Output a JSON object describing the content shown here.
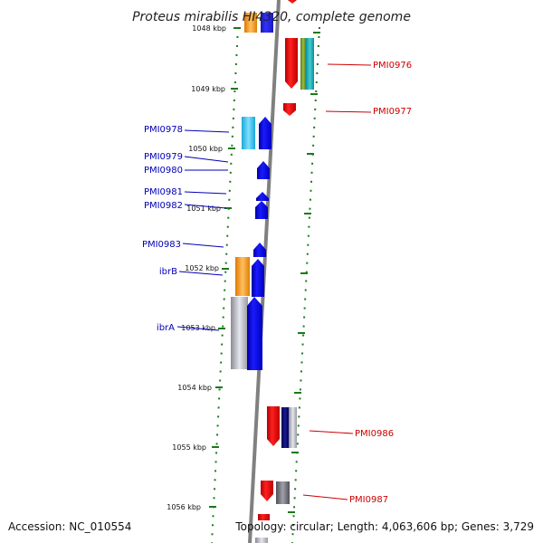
{
  "title": "Proteus mirabilis HI4320, complete genome",
  "footer": {
    "accession": "Accession: NC_010554",
    "topology": "Topology: circular; Length: 4,063,606 bp; Genes: 3,729"
  },
  "ticks": [
    "1048 kbp",
    "1049 kbp",
    "1050 kbp",
    "1051 kbp",
    "1052 kbp",
    "1053 kbp",
    "1054 kbp",
    "1055 kbp",
    "1056 kbp"
  ],
  "genes_left": [
    "PMI0978",
    "PMI0979",
    "PMI0980",
    "PMI0981",
    "PMI0982",
    "PMI0983",
    "ibrB",
    "ibrA"
  ],
  "genes_right": [
    "PMI0976",
    "PMI0977",
    "PMI0986",
    "PMI0987"
  ],
  "colors": {
    "forward": "#0000e6",
    "reverse": "#e60000",
    "label_forward": "#0000b8",
    "label_reverse": "#cc0000",
    "backbone": "#808080",
    "dotted_track": "#1a7a1a",
    "cyan": "#30c8e8",
    "orange": "#f59a1a",
    "gray": "#c0c0c8",
    "teal": "#20a8a8"
  }
}
